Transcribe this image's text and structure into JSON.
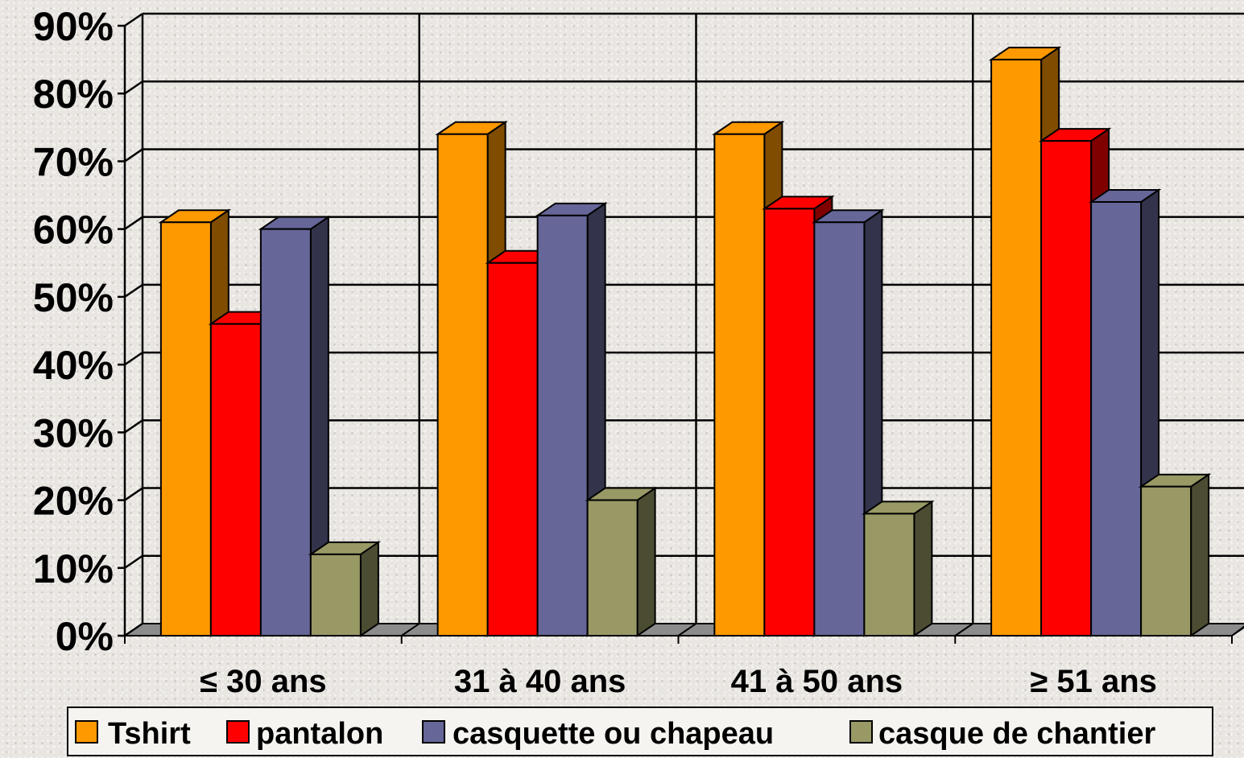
{
  "chart_data": {
    "type": "bar",
    "title": "",
    "xlabel": "",
    "ylabel": "",
    "ylim": [
      0,
      90
    ],
    "y_ticks": [
      "0%",
      "10%",
      "20%",
      "30%",
      "40%",
      "50%",
      "60%",
      "70%",
      "80%",
      "90%"
    ],
    "categories": [
      "≤ 30 ans",
      "31 à 40 ans",
      "41 à 50 ans",
      "≥ 51 ans"
    ],
    "series": [
      {
        "name": "Tshirt",
        "values": [
          61,
          74,
          74,
          85
        ],
        "color": "#ff9900",
        "side_color": "#7f4c00"
      },
      {
        "name": "pantalon",
        "values": [
          46,
          55,
          63,
          73
        ],
        "color": "#ff0000",
        "side_color": "#800000"
      },
      {
        "name": "casquette ou chapeau",
        "values": [
          60,
          62,
          61,
          64
        ],
        "color": "#666699",
        "side_color": "#33334c"
      },
      {
        "name": "casque de chantier",
        "values": [
          12,
          20,
          18,
          22
        ],
        "color": "#999966",
        "side_color": "#4c4c33"
      }
    ],
    "grid": true,
    "legend_position": "bottom",
    "style": "3d-clustered-column"
  }
}
